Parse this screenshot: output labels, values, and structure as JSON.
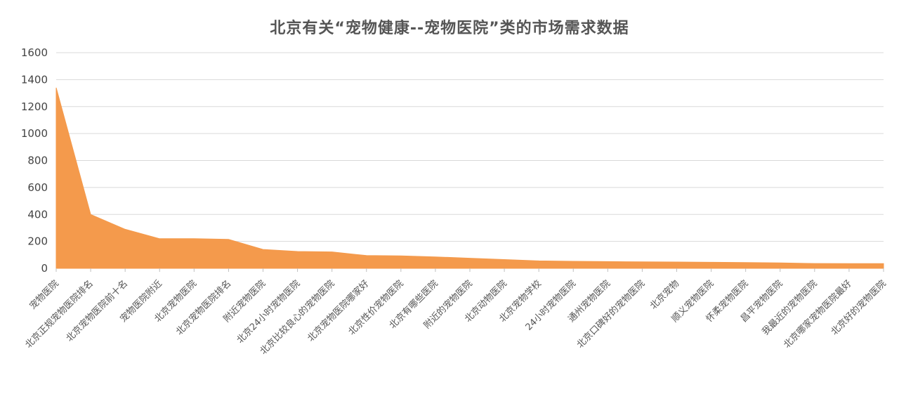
{
  "chart_data": {
    "type": "area",
    "title": "北京有关“宠物健康--宠物医院”类的市场需求数据",
    "xlabel": "",
    "ylabel": "",
    "ylim": [
      0,
      1600
    ],
    "yticks": [
      "0",
      "200",
      "400",
      "600",
      "800",
      "1000",
      "1200",
      "1400",
      "1600"
    ],
    "grid": true,
    "legend": "none",
    "color": "#F49A4C",
    "categories": [
      "宠物医院",
      "北京正规宠物医院排名",
      "北京宠物医院前十名",
      "宠物医院附近",
      "北京宠物医院",
      "北京宠物医院排名",
      "附近宠物医院",
      "北京24小时宠物医院",
      "北京比较良心的宠物医院",
      "北京宠物医院哪家好",
      "北京性价宠物医院",
      "北京有哪些医院",
      "附近的宠物医院",
      "北京动物医院",
      "北京宠物学校",
      "24小时宠物医院",
      "通州宠物医院",
      "北京口碑好的宠物医院",
      "北京宠物",
      "顺义宠物医院",
      "怀柔宠物医院",
      "昌平宠物医院",
      "我最近的宠物医院",
      "北京哪家宠物医院最好",
      "北京好的宠物医院"
    ],
    "values": [
      1340,
      400,
      290,
      220,
      220,
      215,
      140,
      125,
      122,
      95,
      92,
      85,
      75,
      65,
      55,
      52,
      50,
      48,
      47,
      45,
      43,
      40,
      36,
      35,
      35
    ]
  }
}
